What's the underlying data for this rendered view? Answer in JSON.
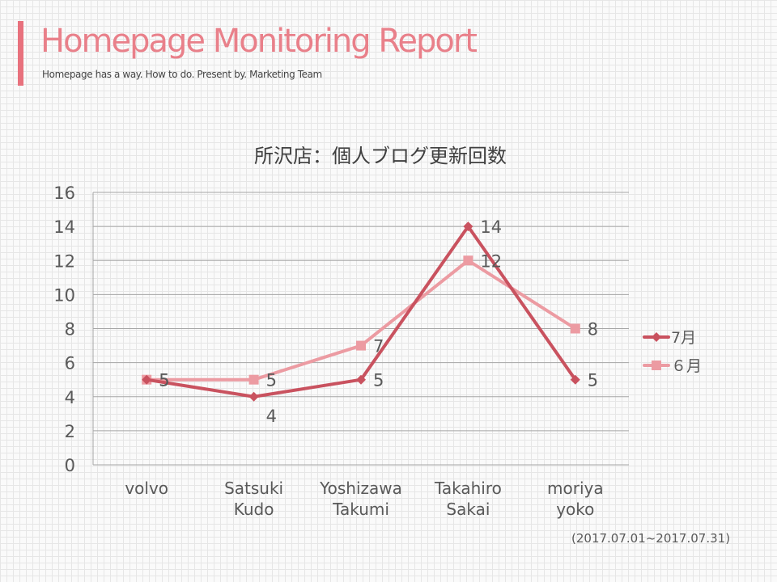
{
  "header": {
    "title": "Homepage Monitoring Report",
    "subtitle": "Homepage has a way. How to do. Present by. Marketing Team"
  },
  "footer": {
    "date_range": "(2017.07.01~2017.07.31)"
  },
  "colors": {
    "accent": "#e8717d",
    "series_july": "#c9525f",
    "series_june": "#ec9ba2",
    "gridline": "#a6a6a6",
    "text": "#595959"
  },
  "chart_data": {
    "type": "line",
    "title": "所沢店：個人ブログ更新回数",
    "xlabel": "",
    "ylabel": "",
    "categories": [
      [
        "volvo"
      ],
      [
        "Satsuki",
        "Kudo"
      ],
      [
        "Yoshizawa",
        "Takumi"
      ],
      [
        "Takahiro",
        "Sakai"
      ],
      [
        "moriya",
        "yoko"
      ]
    ],
    "series": [
      {
        "name": "7月",
        "values": [
          5,
          4,
          5,
          14,
          5
        ],
        "color": "#c9525f",
        "marker": "diamond"
      },
      {
        "name": "６月",
        "values": [
          5,
          5,
          7,
          12,
          8
        ],
        "color": "#ec9ba2",
        "marker": "square"
      }
    ],
    "ylim": [
      0,
      16
    ],
    "yticks": [
      0,
      2,
      4,
      6,
      8,
      10,
      12,
      14,
      16
    ],
    "grid": true,
    "legend": "right",
    "data_labels": true
  }
}
